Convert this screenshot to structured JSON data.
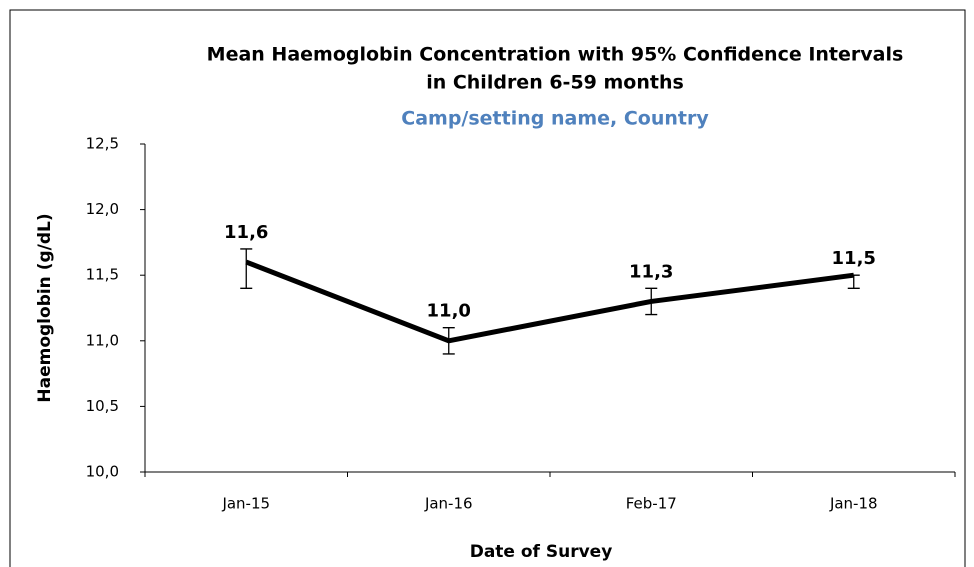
{
  "chart_data": {
    "type": "line",
    "title": [
      "Mean Haemoglobin Concentration with 95% Confidence Intervals",
      "in Children 6-59 months"
    ],
    "subtitle": "Camp/setting name, Country",
    "x_label": "Date of Survey",
    "y_label": "Haemoglobin (g/dL)",
    "categories": [
      "Jan-15",
      "Jan-16",
      "Feb-17",
      "Jan-18"
    ],
    "series": [
      {
        "name": "Mean haemoglobin",
        "color": "#000000",
        "values": [
          11.6,
          11.0,
          11.3,
          11.5
        ],
        "value_labels": [
          "11,6",
          "11,0",
          "11,3",
          "11,5"
        ],
        "ci_lower": [
          11.4,
          10.9,
          11.2,
          11.4
        ],
        "ci_upper": [
          11.7,
          11.1,
          11.4,
          11.5
        ]
      }
    ],
    "ylim": [
      10.0,
      12.5
    ],
    "yticks": [
      {
        "value": 10.0,
        "label": "10,0"
      },
      {
        "value": 10.5,
        "label": "10,5"
      },
      {
        "value": 11.0,
        "label": "11,0"
      },
      {
        "value": 11.5,
        "label": "11,5"
      },
      {
        "value": 12.0,
        "label": "12,0"
      },
      {
        "value": 12.5,
        "label": "12,5"
      }
    ],
    "grid": false
  }
}
